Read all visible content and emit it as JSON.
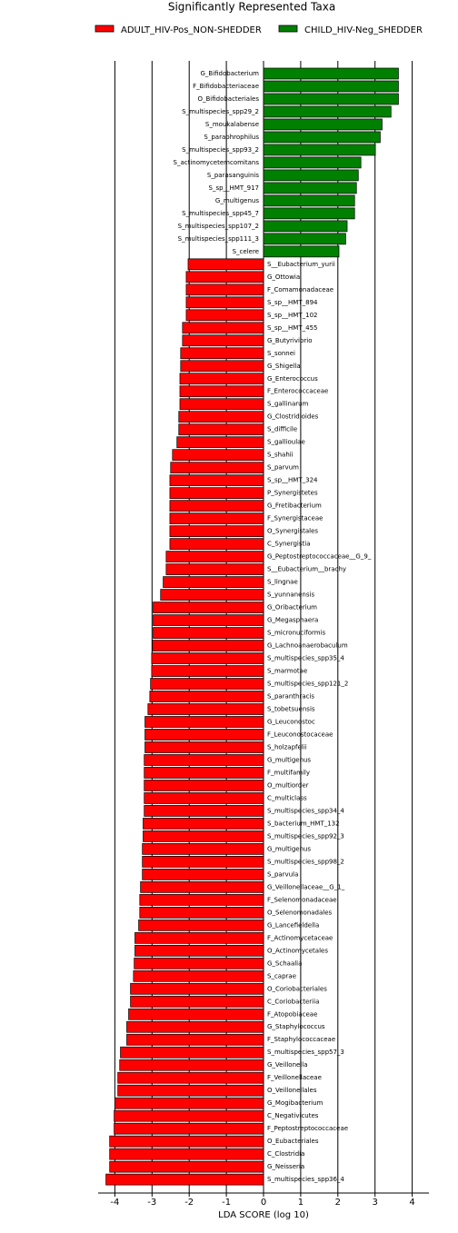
{
  "chart_data": {
    "type": "barh",
    "title": "Significantly Represented Taxa",
    "xlabel": "LDA SCORE (log 10)",
    "xlim": [
      -4.45,
      4.45
    ],
    "xticks": [
      -4,
      -3,
      -2,
      -1,
      0,
      1,
      2,
      3,
      4
    ],
    "grid": true,
    "grid_color": "#000000",
    "legend": "top",
    "categories": [
      "G_Bifidobacterium",
      "F_Bifidobacteriaceae",
      "O_Bifidobacteriales",
      "S_multispecies_spp29_2",
      "S_moukalabense",
      "S_paraphrophilus",
      "S_multispecies_spp93_2",
      "S_actinomycetemcomitans",
      "S_parasanguinis",
      "S_sp__HMT_917",
      "G_multigenus",
      "S_multispecies_spp45_7",
      "S_multispecies_spp107_2",
      "S_multispecies_spp111_3",
      "S_celere",
      "S__Eubacterium_yurii",
      "G_Ottowia",
      "F_Comamonadaceae",
      "S_sp__HMT_894",
      "S_sp__HMT_102",
      "S_sp__HMT_455",
      "G_Butyrivibrio",
      "S_sonnei",
      "G_Shigella",
      "G_Enterococcus",
      "F_Enterococcaceae",
      "S_gallinarum",
      "G_Clostridioides",
      "S_difficile",
      "S_gallioulae",
      "S_shahii",
      "S_parvum",
      "S_sp__HMT_324",
      "P_Synergistetes",
      "G_Fretibacterium",
      "F_Synergistaceae",
      "O_Synergistales",
      "C_Synergistia",
      "G_Peptostreptococcaceae__G_9_",
      "S__Eubacterium__brachy",
      "S_lingnae",
      "S_yunnanensis",
      "G_Oribacterium",
      "G_Megasphaera",
      "S_micronuciformis",
      "G_Lachnoanaerobaculum",
      "S_multispecies_spp35_4",
      "S_marmotae",
      "S_multispecies_spp121_2",
      "S_paranthracis",
      "S_tobetsuensis",
      "G_Leuconostoc",
      "F_Leuconostocaceae",
      "S_holzapfelii",
      "G_multigenus",
      "F_multifamily",
      "O_multiorder",
      "C_multiclass",
      "S_multispecies_spp34_4",
      "S_bacterium_HMT_132",
      "S_multispecies_spp92_3",
      "G_multigenus",
      "S_multispecies_spp98_2",
      "S_parvula",
      "G_Veillonellaceae__G_1_",
      "F_Selenomonadaceae",
      "O_Selenomonadales",
      "G_Lancefieldella",
      "F_Actinomycetaceae",
      "O_Actinomycetales",
      "G_Schaalia",
      "S_caprae",
      "O_Coriobacteriales",
      "C_Coriobacteriia",
      "F_Atopobiaceae",
      "G_Staphylococcus",
      "F_Staphylococcaceae",
      "S_multispecies_spp57_3",
      "G_Veillonella",
      "F_Veillonellaceae",
      "O_Veillonellales",
      "G_Mogibacterium",
      "C_Negativicutes",
      "F_Peptostreptococcaceae",
      "O_Eubacteriales",
      "C_Clostridia",
      "G_Neisseria",
      "S_multispecies_spp36_4"
    ],
    "series": [
      {
        "name": "ADULT_HIV-Pos_NON-SHEDDER",
        "color": "#ff0000",
        "values": [
          null,
          null,
          null,
          null,
          null,
          null,
          null,
          null,
          null,
          null,
          null,
          null,
          null,
          null,
          null,
          -2.03,
          -2.08,
          -2.08,
          -2.08,
          -2.08,
          -2.18,
          -2.18,
          -2.23,
          -2.23,
          -2.25,
          -2.25,
          -2.25,
          -2.28,
          -2.28,
          -2.33,
          -2.45,
          -2.5,
          -2.52,
          -2.52,
          -2.52,
          -2.52,
          -2.52,
          -2.52,
          -2.62,
          -2.62,
          -2.7,
          -2.77,
          -2.97,
          -2.97,
          -2.97,
          -2.99,
          -3.01,
          -3.01,
          -3.04,
          -3.06,
          -3.11,
          -3.19,
          -3.19,
          -3.19,
          -3.21,
          -3.21,
          -3.21,
          -3.21,
          -3.21,
          -3.24,
          -3.24,
          -3.26,
          -3.26,
          -3.26,
          -3.31,
          -3.33,
          -3.33,
          -3.36,
          -3.46,
          -3.46,
          -3.48,
          -3.5,
          -3.58,
          -3.58,
          -3.63,
          -3.68,
          -3.68,
          -3.85,
          -3.87,
          -3.92,
          -3.92,
          -4.0,
          -4.02,
          -4.02,
          -4.14,
          -4.14,
          -4.14,
          -4.24
        ]
      },
      {
        "name": "CHILD_HIV-Neg_SHEDDER",
        "color": "#008000",
        "values": [
          3.63,
          3.63,
          3.63,
          3.43,
          3.19,
          3.14,
          3.01,
          2.62,
          2.55,
          2.5,
          2.45,
          2.45,
          2.25,
          2.21,
          2.03,
          null,
          null,
          null,
          null,
          null,
          null,
          null,
          null,
          null,
          null,
          null,
          null,
          null,
          null,
          null,
          null,
          null,
          null,
          null,
          null,
          null,
          null,
          null,
          null,
          null,
          null,
          null,
          null,
          null,
          null,
          null,
          null,
          null,
          null,
          null,
          null,
          null,
          null,
          null,
          null,
          null,
          null,
          null,
          null,
          null,
          null,
          null,
          null,
          null,
          null,
          null,
          null,
          null,
          null,
          null,
          null,
          null,
          null,
          null,
          null,
          null,
          null,
          null,
          null,
          null,
          null,
          null,
          null,
          null,
          null,
          null,
          null,
          null
        ]
      }
    ]
  }
}
